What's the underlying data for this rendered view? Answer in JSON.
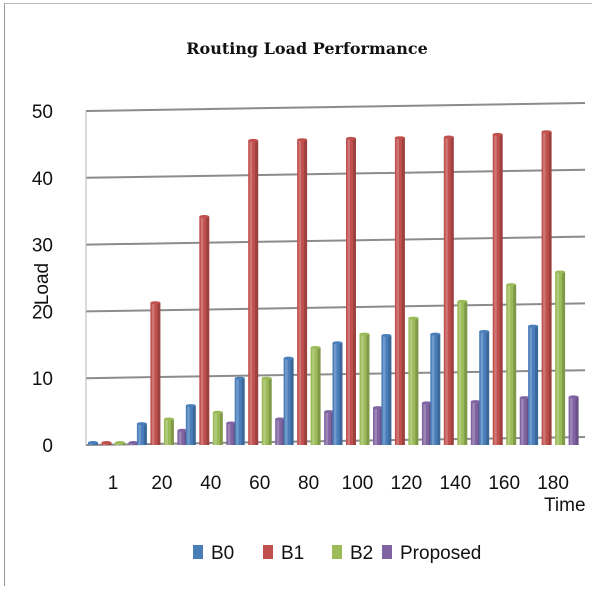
{
  "chart_data": {
    "type": "bar",
    "title": "Routing Load Performance",
    "xlabel": "Time",
    "ylabel": "Load",
    "ylim": [
      0,
      50
    ],
    "yticks": [
      0,
      10,
      20,
      30,
      40,
      50
    ],
    "categories": [
      "1",
      "20",
      "40",
      "60",
      "80",
      "100",
      "120",
      "140",
      "160",
      "180"
    ],
    "series": [
      {
        "name": "B0",
        "color": "#4a7ebb",
        "values": [
          0,
          3.2,
          5.9,
          10,
          13,
          15.3,
          16.4,
          16.6,
          17,
          17.8
        ]
      },
      {
        "name": "B1",
        "color": "#c0504d",
        "values": [
          0,
          21.3,
          34.2,
          45.6,
          45.7,
          45.9,
          46,
          46.1,
          46.5,
          46.9
        ]
      },
      {
        "name": "B2",
        "color": "#9bbb59",
        "values": [
          0,
          3.9,
          4.9,
          10,
          14.6,
          16.6,
          19,
          21.5,
          24,
          25.9
        ]
      },
      {
        "name": "Proposed",
        "color": "#8064a2",
        "values": [
          0,
          2.2,
          3.3,
          3.9,
          5,
          5.6,
          6.3,
          6.5,
          7.1,
          7.2
        ]
      }
    ],
    "grid": true,
    "legend": "bottom"
  }
}
